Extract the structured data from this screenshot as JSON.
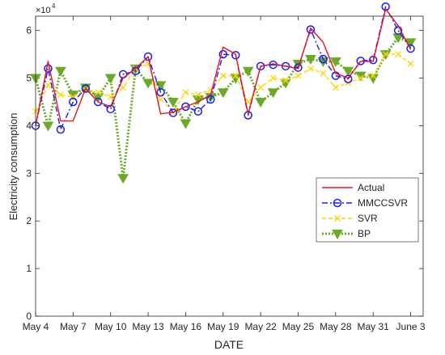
{
  "chart_data": {
    "type": "line",
    "xlabel": "DATE",
    "ylabel": "Electricity consumption",
    "exponent_label": "×10",
    "exponent_power": "4",
    "ylim": [
      0,
      6.3
    ],
    "xlim": [
      0,
      31
    ],
    "y_ticks": [
      0,
      1,
      2,
      3,
      4,
      5,
      6
    ],
    "x_ticks": [
      {
        "x": 0,
        "label": "May 4"
      },
      {
        "x": 3,
        "label": "May 7"
      },
      {
        "x": 6,
        "label": "May 10"
      },
      {
        "x": 9,
        "label": "May 13"
      },
      {
        "x": 12,
        "label": "May 16"
      },
      {
        "x": 15,
        "label": "May 19"
      },
      {
        "x": 18,
        "label": "May 22"
      },
      {
        "x": 21,
        "label": "May 25"
      },
      {
        "x": 24,
        "label": "May 28"
      },
      {
        "x": 27,
        "label": "May 31"
      },
      {
        "x": 30,
        "label": "June 3"
      }
    ],
    "x": [
      0,
      1,
      2,
      3,
      4,
      5,
      6,
      7,
      8,
      9,
      10,
      11,
      12,
      13,
      14,
      15,
      16,
      17,
      18,
      19,
      20,
      21,
      22,
      23,
      24,
      25,
      26,
      27,
      28,
      29,
      30
    ],
    "legend_position": "inside-lower-right",
    "series": [
      {
        "name": "Actual",
        "color": "#e8141c",
        "dash": "solid",
        "marker": "none",
        "values": [
          4.0,
          5.35,
          4.1,
          4.1,
          4.78,
          4.5,
          4.4,
          5.0,
          5.2,
          5.45,
          4.25,
          4.28,
          4.4,
          4.5,
          4.65,
          5.65,
          5.5,
          4.25,
          5.25,
          5.3,
          5.25,
          5.2,
          6.05,
          5.75,
          5.1,
          5.0,
          5.35,
          5.35,
          6.45,
          6.1,
          5.6
        ]
      },
      {
        "name": "MMCCSVR",
        "color": "#1a1aff",
        "dash": "dashdot",
        "marker": "circle",
        "values": [
          4.0,
          5.2,
          3.92,
          4.5,
          4.78,
          4.5,
          4.35,
          5.08,
          5.15,
          5.45,
          4.7,
          4.27,
          4.4,
          4.3,
          4.55,
          5.5,
          5.48,
          4.22,
          5.25,
          5.28,
          5.25,
          5.22,
          6.02,
          5.4,
          5.05,
          4.98,
          5.36,
          5.38,
          6.5,
          6.0,
          5.62
        ]
      },
      {
        "name": "SVR",
        "color": "#ffd600",
        "dash": "dashed",
        "marker": "x",
        "values": [
          4.3,
          4.85,
          4.65,
          4.6,
          4.75,
          4.7,
          4.6,
          4.8,
          5.2,
          5.3,
          4.55,
          4.3,
          4.7,
          4.65,
          4.75,
          5.05,
          5.05,
          4.5,
          4.8,
          5.0,
          4.95,
          5.05,
          5.2,
          5.1,
          4.8,
          4.9,
          5.0,
          5.05,
          5.5,
          5.5,
          5.3
        ]
      },
      {
        "name": "BP",
        "color": "#6aaa28",
        "dash": "dotted",
        "marker": "triangle-down",
        "values": [
          5.0,
          4.0,
          5.15,
          4.65,
          4.8,
          4.6,
          5.0,
          2.9,
          5.2,
          4.9,
          4.85,
          4.5,
          4.05,
          4.55,
          4.6,
          4.7,
          5.0,
          5.15,
          4.5,
          4.7,
          4.9,
          5.3,
          5.4,
          5.35,
          5.35,
          5.15,
          5.05,
          5.0,
          5.5,
          5.85,
          5.75
        ]
      }
    ]
  }
}
